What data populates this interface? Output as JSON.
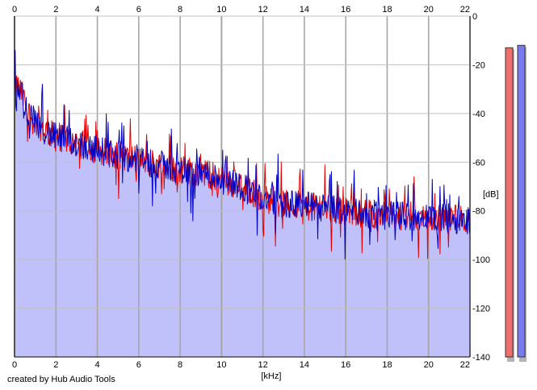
{
  "footer": {
    "credit": "created by Hub Audio Tools"
  },
  "chart_data": {
    "type": "line",
    "title": "",
    "xlabel": "[kHz]",
    "ylabel": "[dB]",
    "xlim": [
      0,
      22
    ],
    "ylim": [
      -140,
      0
    ],
    "x_ticks": [
      0,
      2,
      4,
      6,
      8,
      10,
      12,
      14,
      16,
      18,
      20,
      22
    ],
    "y_ticks": [
      0,
      -20,
      -40,
      -60,
      -80,
      -100,
      -120,
      -140
    ],
    "grid": true,
    "legend": "none",
    "colors": {
      "red": "#e60000",
      "blue": "#0000c8",
      "fill": "#c0c0fa",
      "grid": "#a6a6a6"
    },
    "envelope_points": [
      [
        0.05,
        -28
      ],
      [
        0.3,
        -31
      ],
      [
        0.8,
        -42
      ],
      [
        1.5,
        -47
      ],
      [
        2,
        -50
      ],
      [
        3,
        -52
      ],
      [
        4,
        -55
      ],
      [
        5,
        -57
      ],
      [
        6,
        -59
      ],
      [
        7,
        -61
      ],
      [
        8,
        -63
      ],
      [
        9,
        -64
      ],
      [
        10,
        -67
      ],
      [
        11,
        -70
      ],
      [
        12,
        -75
      ],
      [
        13,
        -77
      ],
      [
        14,
        -78
      ],
      [
        15,
        -79
      ],
      [
        16,
        -80
      ],
      [
        17,
        -81
      ],
      [
        18,
        -82
      ],
      [
        19,
        -82
      ],
      [
        20,
        -83
      ],
      [
        21,
        -83
      ],
      [
        22,
        -84
      ]
    ],
    "series": [
      {
        "color": "red",
        "values": []
      },
      {
        "color": "blue",
        "values": []
      }
    ],
    "level_meters": [
      {
        "color": "red",
        "peak_db": -13
      },
      {
        "color": "blue",
        "peak_db": -12
      }
    ]
  }
}
